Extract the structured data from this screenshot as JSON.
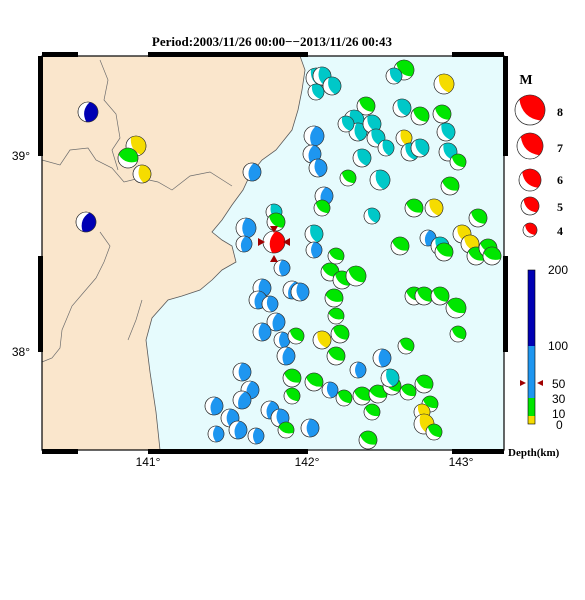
{
  "title": "Period:2003/11/26 00:00−−2013/11/26 00:43",
  "axes": {
    "lon_ticks": [
      "141°",
      "142°",
      "143°"
    ],
    "lat_ticks": [
      "39°",
      "38°"
    ]
  },
  "colors": {
    "land": "#fae6cc",
    "sea": "#e6fbfd",
    "coast": "#5a5a5a",
    "deep": "#0000b4",
    "mid": "#1e96f0",
    "shallow_green": "#00e600",
    "shallow_cyan": "#00c8c8",
    "very_shallow": "#f5dc00",
    "highlight": "#ff0000",
    "marker": "#a00000"
  },
  "magnitude_legend": {
    "title": "M",
    "items": [
      "8",
      "7",
      "6",
      "5",
      "4"
    ]
  },
  "depth_legend": {
    "labels": [
      "200",
      "100",
      "50",
      "30",
      "10",
      "0"
    ],
    "unit_label": "Depth(km)"
  }
}
